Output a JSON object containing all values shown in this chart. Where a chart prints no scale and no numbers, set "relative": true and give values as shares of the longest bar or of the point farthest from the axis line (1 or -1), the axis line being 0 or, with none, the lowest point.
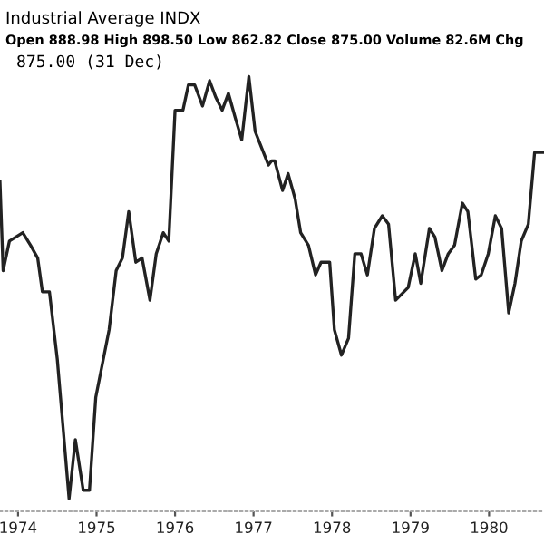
{
  "chart_data": {
    "type": "line",
    "relative": true,
    "title": "Industrial Average INDX",
    "subtitle": "Open 888.98 High 898.50 Low 862.82 Close 875.00 Volume 82.6M Chg",
    "annotations": [
      "875.00 (31 Dec)"
    ],
    "xlim": [
      1973.77,
      1980.7
    ],
    "xticks": [
      1974,
      1975,
      1976,
      1977,
      1978,
      1979,
      1980
    ],
    "grid": false,
    "marker": "none",
    "line_style": "solid",
    "series": [
      {
        "color": "#222222",
        "x": [
          1973.77,
          1973.81,
          1973.89,
          1974.06,
          1974.16,
          1974.25,
          1974.31,
          1974.4,
          1974.5,
          1974.65,
          1974.73,
          1974.83,
          1974.91,
          1974.99,
          1975.16,
          1975.25,
          1975.33,
          1975.41,
          1975.5,
          1975.58,
          1975.68,
          1975.76,
          1975.85,
          1975.92,
          1976.0,
          1976.1,
          1976.17,
          1976.25,
          1976.35,
          1976.44,
          1976.52,
          1976.6,
          1976.68,
          1976.77,
          1976.85,
          1976.94,
          1977.02,
          1977.19,
          1977.23,
          1977.27,
          1977.37,
          1977.44,
          1977.53,
          1977.6,
          1977.7,
          1977.79,
          1977.86,
          1977.97,
          1978.03,
          1978.12,
          1978.21,
          1978.29,
          1978.37,
          1978.45,
          1978.54,
          1978.64,
          1978.72,
          1978.81,
          1978.97,
          1979.06,
          1979.13,
          1979.24,
          1979.31,
          1979.4,
          1979.48,
          1979.56,
          1979.66,
          1979.73,
          1979.83,
          1979.9,
          1979.99,
          1980.08,
          1980.16,
          1980.25,
          1980.33,
          1980.41,
          1980.5,
          1980.58,
          1980.7
        ],
        "values": [
          0.75,
          0.54,
          0.61,
          0.63,
          0.6,
          0.57,
          0.49,
          0.49,
          0.33,
          0,
          0.14,
          0.02,
          0.02,
          0.24,
          0.4,
          0.54,
          0.57,
          0.68,
          0.56,
          0.57,
          0.47,
          0.58,
          0.63,
          0.61,
          0.92,
          0.92,
          0.98,
          0.98,
          0.93,
          0.99,
          0.95,
          0.92,
          0.96,
          0.9,
          0.85,
          1,
          0.87,
          0.79,
          0.8,
          0.8,
          0.73,
          0.77,
          0.71,
          0.63,
          0.6,
          0.53,
          0.56,
          0.56,
          0.4,
          0.34,
          0.38,
          0.58,
          0.58,
          0.53,
          0.64,
          0.67,
          0.65,
          0.47,
          0.5,
          0.58,
          0.51,
          0.64,
          0.62,
          0.54,
          0.58,
          0.6,
          0.7,
          0.68,
          0.52,
          0.53,
          0.58,
          0.67,
          0.64,
          0.44,
          0.51,
          0.61,
          0.65,
          0.82,
          0.82
        ]
      }
    ]
  }
}
